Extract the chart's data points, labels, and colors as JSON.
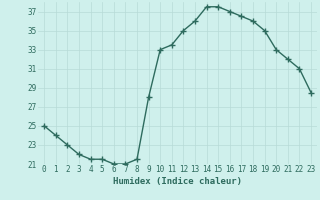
{
  "x": [
    0,
    1,
    2,
    3,
    4,
    5,
    6,
    7,
    8,
    9,
    10,
    11,
    12,
    13,
    14,
    15,
    16,
    17,
    18,
    19,
    20,
    21,
    22,
    23
  ],
  "y": [
    25,
    24,
    23,
    22,
    21.5,
    21.5,
    21,
    21,
    21.5,
    28,
    33,
    33.5,
    35,
    36,
    37.5,
    37.5,
    37,
    36.5,
    36,
    35,
    33,
    32,
    31,
    28.5
  ],
  "xlabel": "Humidex (Indice chaleur)",
  "ylim": [
    21,
    38
  ],
  "yticks": [
    21,
    23,
    25,
    27,
    29,
    31,
    33,
    35,
    37
  ],
  "xticks": [
    0,
    1,
    2,
    3,
    4,
    5,
    6,
    7,
    8,
    9,
    10,
    11,
    12,
    13,
    14,
    15,
    16,
    17,
    18,
    19,
    20,
    21,
    22,
    23
  ],
  "line_color": "#2e6b5e",
  "bg_color": "#cff0ec",
  "grid_color": "#b8dbd7",
  "text_color": "#2e6b5e",
  "marker": "+",
  "linewidth": 1.0,
  "markersize": 4,
  "tick_fontsize": 5.5,
  "xlabel_fontsize": 6.5
}
